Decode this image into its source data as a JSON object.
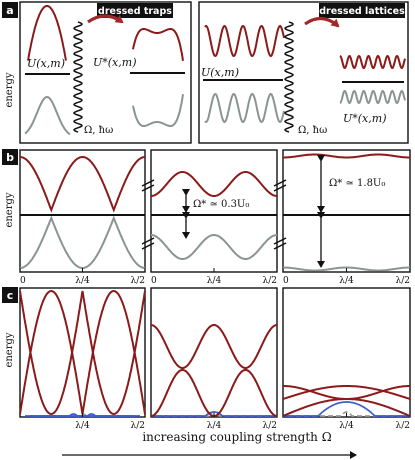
{
  "colors": {
    "red": "#8b1a1a",
    "gray": "#8a9590",
    "blue": "#3a5fcd",
    "dashed": "#9a9a9a",
    "black": "#111111",
    "arrow_red": "#a02828"
  },
  "panel_a": {
    "label": "a",
    "left_badge": "dressed traps",
    "right_badge": "dressed lattices",
    "y_axis_label": "energy",
    "U_label": "U(x,m)",
    "Ustar_label": "U*(x,m)",
    "coupling_label": "Ω, ħω"
  },
  "panel_b": {
    "label": "b",
    "y_axis_label": "energy",
    "gap_small": "Ω* ≃ 0.3U₀",
    "gap_large": "Ω* ≃ 1.8U₀",
    "ticks": [
      "0",
      "λ/4",
      "λ/2"
    ]
  },
  "panel_c": {
    "label": "c",
    "y_axis_label": "energy",
    "ticks": [
      "λ/4"
    ],
    "x_end_tick": "λ/2"
  },
  "footer": {
    "label": "increasing coupling strength Ω"
  }
}
